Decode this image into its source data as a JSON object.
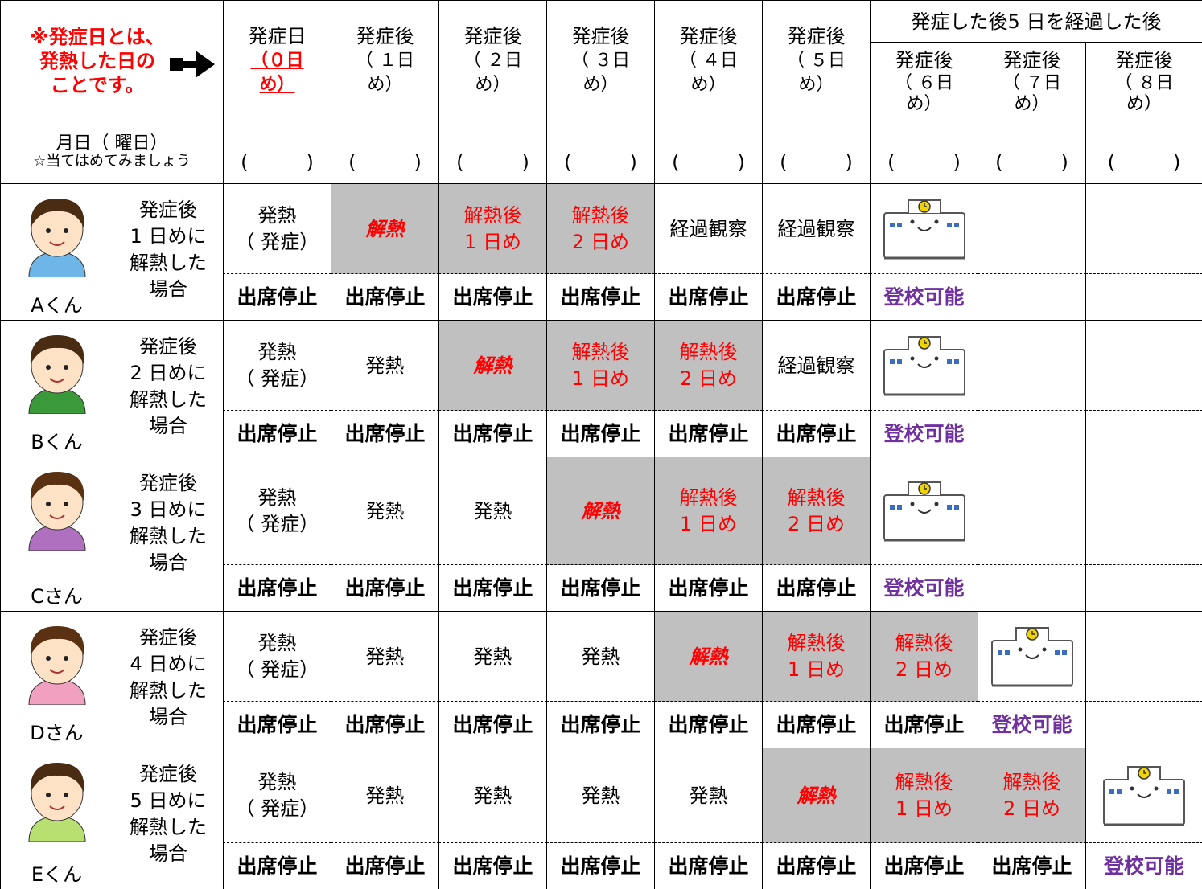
{
  "header": {
    "note": "※発症日とは、\n発熱した日の\nことです。",
    "note_color": "#ff0000",
    "days": [
      {
        "title": "発症日",
        "sub": "（０日\nめ）",
        "sub_color": "#ff0000",
        "sub_underline": true
      },
      {
        "title": "発症後",
        "sub": "（ １日\nめ）"
      },
      {
        "title": "発症後",
        "sub": "（ ２日\nめ）"
      },
      {
        "title": "発症後",
        "sub": "（ ３日\nめ）"
      },
      {
        "title": "発症後",
        "sub": "（ ４日\nめ）"
      },
      {
        "title": "発症後",
        "sub": "（ ５日\nめ）"
      },
      {
        "title": "発症後",
        "sub": "（ ６日\nめ）"
      },
      {
        "title": "発症後",
        "sub": "（ ７日\nめ）"
      },
      {
        "title": "発症後",
        "sub": "（ ８日\nめ）"
      }
    ],
    "group": "発症した後5 日を経過した後"
  },
  "date_row": {
    "label": "月日（ 曜日）",
    "hint": "☆当てはめてみましょう",
    "blanks": [
      "(　　　)",
      "(　　　)",
      "(　　　)",
      "(　　　)",
      "(　　　)",
      "(　　　)",
      "(　　　)",
      "(　　　)",
      "(　　　)"
    ]
  },
  "persons": [
    {
      "name": "Aくん",
      "description": "発症後\n1 日めに\n解熱した\n場合",
      "shirt": "#6fb6e8",
      "hair": "#4a2c12",
      "cells": [
        {
          "text": "発熱\n（ 発症）",
          "attendance": "出席停止"
        },
        {
          "text": "解熱",
          "color": "#ff0000",
          "italic": true,
          "shaded": true,
          "attendance": "出席停止"
        },
        {
          "text": "解熱後\n1 日め",
          "color": "#ff0000",
          "shaded": true,
          "attendance": "出席停止"
        },
        {
          "text": "解熱後\n2 日め",
          "color": "#ff0000",
          "shaded": true,
          "attendance": "出席停止"
        },
        {
          "text": "経過観察",
          "attendance": "出席停止"
        },
        {
          "text": "経過観察",
          "attendance": "出席停止"
        },
        {
          "icon": "school",
          "attendance": "登校可能",
          "attendance_color": "#7030a0"
        }
      ]
    },
    {
      "name": "Bくん",
      "description": "発症後\n2 日めに\n解熱した\n場合",
      "shirt": "#3a9a3a",
      "hair": "#4a2c12",
      "cells": [
        {
          "text": "発熱\n（ 発症）",
          "attendance": "出席停止"
        },
        {
          "text": "発熱",
          "attendance": "出席停止"
        },
        {
          "text": "解熱",
          "color": "#ff0000",
          "italic": true,
          "shaded": true,
          "attendance": "出席停止"
        },
        {
          "text": "解熱後\n1 日め",
          "color": "#ff0000",
          "shaded": true,
          "attendance": "出席停止"
        },
        {
          "text": "解熱後\n2 日め",
          "color": "#ff0000",
          "shaded": true,
          "attendance": "出席停止"
        },
        {
          "text": "経過観察",
          "attendance": "出席停止"
        },
        {
          "icon": "school",
          "attendance": "登校可能",
          "attendance_color": "#7030a0"
        }
      ]
    },
    {
      "name": "Cさん",
      "description": "発症後\n3 日めに\n解熱した\n場合",
      "shirt": "#b070c0",
      "hair": "#5a3212",
      "cells": [
        {
          "text": "発熱\n（ 発症）",
          "attendance": "出席停止"
        },
        {
          "text": "発熱",
          "attendance": "出席停止"
        },
        {
          "text": "発熱",
          "attendance": "出席停止"
        },
        {
          "text": "解熱",
          "color": "#ff0000",
          "italic": true,
          "shaded": true,
          "attendance": "出席停止"
        },
        {
          "text": "解熱後\n1 日め",
          "color": "#ff0000",
          "shaded": true,
          "attendance": "出席停止"
        },
        {
          "text": "解熱後\n2 日め",
          "color": "#ff0000",
          "shaded": true,
          "attendance": "出席停止"
        },
        {
          "icon": "school",
          "attendance": "登校可能",
          "attendance_color": "#7030a0"
        }
      ]
    },
    {
      "name": "Dさん",
      "description": "発症後\n4 日めに\n解熱した\n場合",
      "shirt": "#f2a0c0",
      "hair": "#5a3212",
      "cells": [
        {
          "text": "発熱\n（ 発症）",
          "attendance": "出席停止"
        },
        {
          "text": "発熱",
          "attendance": "出席停止"
        },
        {
          "text": "発熱",
          "attendance": "出席停止"
        },
        {
          "text": "発熱",
          "attendance": "出席停止"
        },
        {
          "text": "解熱",
          "color": "#ff0000",
          "italic": true,
          "shaded": true,
          "attendance": "出席停止"
        },
        {
          "text": "解熱後\n1 日め",
          "color": "#ff0000",
          "shaded": true,
          "attendance": "出席停止"
        },
        {
          "text": "解熱後\n2 日め",
          "color": "#ff0000",
          "shaded": true,
          "attendance": "出席停止"
        },
        {
          "icon": "school",
          "attendance": "登校可能",
          "attendance_color": "#7030a0"
        }
      ]
    },
    {
      "name": "Eくん",
      "description": "発症後\n5 日めに\n解熱した\n場合",
      "shirt": "#b8e070",
      "hair": "#4a2c12",
      "cells": [
        {
          "text": "発熱\n（ 発症）",
          "attendance": "出席停止"
        },
        {
          "text": "発熱",
          "attendance": "出席停止"
        },
        {
          "text": "発熱",
          "attendance": "出席停止"
        },
        {
          "text": "発熱",
          "attendance": "出席停止"
        },
        {
          "text": "発熱",
          "attendance": "出席停止"
        },
        {
          "text": "解熱",
          "color": "#ff0000",
          "italic": true,
          "shaded": true,
          "attendance": "出席停止"
        },
        {
          "text": "解熱後\n1 日め",
          "color": "#ff0000",
          "shaded": true,
          "attendance": "出席停止"
        },
        {
          "text": "解熱後\n2 日め",
          "color": "#ff0000",
          "shaded": true,
          "attendance": "出席停止"
        },
        {
          "icon": "school",
          "attendance": "登校可能",
          "attendance_color": "#7030a0"
        }
      ]
    }
  ]
}
